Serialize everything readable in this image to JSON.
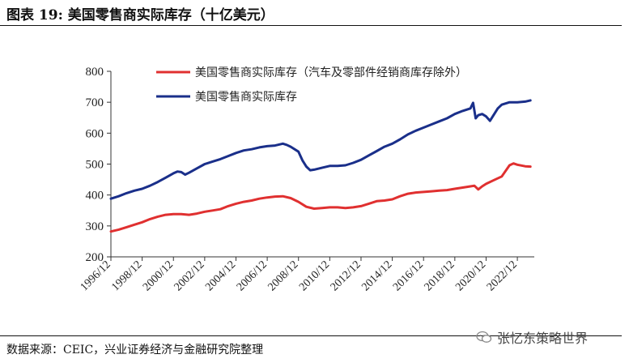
{
  "header": {
    "figure_title": "图表 19:  美国零售商实际库存（十亿美元）"
  },
  "footer": {
    "source": "数据来源：CEIC，兴业证券经济与金融研究院整理",
    "watermark": "张忆东策略世界"
  },
  "colors": {
    "series_red": "#e03030",
    "series_navy": "#1a2f8a",
    "axis": "#333333"
  },
  "chart_data": {
    "type": "line",
    "title": "",
    "xlabel": "",
    "ylabel": "",
    "ylim": [
      200,
      800
    ],
    "yticks": [
      200,
      300,
      400,
      500,
      600,
      700,
      800
    ],
    "xlim": [
      1996.917,
      2024.0
    ],
    "xticks": [
      "1996/12",
      "1998/12",
      "2000/12",
      "2002/12",
      "2004/12",
      "2006/12",
      "2008/12",
      "2010/12",
      "2012/12",
      "2014/12",
      "2016/12",
      "2018/12",
      "2020/12",
      "2022/12"
    ],
    "legend_position": "top-right",
    "grid": false,
    "series": [
      {
        "name": "美国零售商实际库存（汽车及零部件经销商库存除外）",
        "color": "#e03030",
        "points": [
          [
            "1996-12",
            282
          ],
          [
            "1997-06",
            288
          ],
          [
            "1997-12",
            296
          ],
          [
            "1998-06",
            304
          ],
          [
            "1998-12",
            312
          ],
          [
            "1999-06",
            322
          ],
          [
            "1999-12",
            330
          ],
          [
            "2000-06",
            336
          ],
          [
            "2000-12",
            338
          ],
          [
            "2001-06",
            338
          ],
          [
            "2001-12",
            336
          ],
          [
            "2002-06",
            340
          ],
          [
            "2002-12",
            346
          ],
          [
            "2003-06",
            350
          ],
          [
            "2003-12",
            354
          ],
          [
            "2004-06",
            364
          ],
          [
            "2004-12",
            372
          ],
          [
            "2005-06",
            378
          ],
          [
            "2005-12",
            382
          ],
          [
            "2006-06",
            388
          ],
          [
            "2006-12",
            392
          ],
          [
            "2007-06",
            395
          ],
          [
            "2007-12",
            396
          ],
          [
            "2008-06",
            390
          ],
          [
            "2008-12",
            378
          ],
          [
            "2009-06",
            362
          ],
          [
            "2009-12",
            356
          ],
          [
            "2010-06",
            358
          ],
          [
            "2010-12",
            360
          ],
          [
            "2011-06",
            360
          ],
          [
            "2011-12",
            358
          ],
          [
            "2012-06",
            360
          ],
          [
            "2012-12",
            364
          ],
          [
            "2013-06",
            372
          ],
          [
            "2013-12",
            380
          ],
          [
            "2014-06",
            382
          ],
          [
            "2014-12",
            386
          ],
          [
            "2015-06",
            396
          ],
          [
            "2015-12",
            404
          ],
          [
            "2016-06",
            408
          ],
          [
            "2016-12",
            410
          ],
          [
            "2017-06",
            412
          ],
          [
            "2017-12",
            414
          ],
          [
            "2018-06",
            416
          ],
          [
            "2018-12",
            420
          ],
          [
            "2019-06",
            424
          ],
          [
            "2019-12",
            428
          ],
          [
            "2020-03",
            430
          ],
          [
            "2020-06",
            418
          ],
          [
            "2020-09",
            428
          ],
          [
            "2020-12",
            436
          ],
          [
            "2021-06",
            448
          ],
          [
            "2021-12",
            460
          ],
          [
            "2022-06",
            496
          ],
          [
            "2022-09",
            502
          ],
          [
            "2022-12",
            498
          ],
          [
            "2023-06",
            493
          ],
          [
            "2023-10",
            492
          ]
        ]
      },
      {
        "name": "美国零售商实际库存",
        "color": "#1a2f8a",
        "points": [
          [
            "1996-12",
            388
          ],
          [
            "1997-06",
            396
          ],
          [
            "1997-12",
            406
          ],
          [
            "1998-06",
            414
          ],
          [
            "1998-12",
            420
          ],
          [
            "1999-06",
            430
          ],
          [
            "1999-12",
            442
          ],
          [
            "2000-06",
            456
          ],
          [
            "2000-12",
            470
          ],
          [
            "2001-03",
            476
          ],
          [
            "2001-06",
            474
          ],
          [
            "2001-09",
            466
          ],
          [
            "2001-12",
            472
          ],
          [
            "2002-06",
            486
          ],
          [
            "2002-12",
            500
          ],
          [
            "2003-06",
            508
          ],
          [
            "2003-12",
            516
          ],
          [
            "2004-06",
            526
          ],
          [
            "2004-12",
            536
          ],
          [
            "2005-06",
            544
          ],
          [
            "2005-12",
            548
          ],
          [
            "2006-06",
            554
          ],
          [
            "2006-12",
            558
          ],
          [
            "2007-06",
            560
          ],
          [
            "2007-12",
            566
          ],
          [
            "2008-03",
            562
          ],
          [
            "2008-06",
            556
          ],
          [
            "2008-12",
            540
          ],
          [
            "2009-03",
            512
          ],
          [
            "2009-06",
            492
          ],
          [
            "2009-09",
            480
          ],
          [
            "2009-12",
            482
          ],
          [
            "2010-06",
            488
          ],
          [
            "2010-12",
            494
          ],
          [
            "2011-06",
            494
          ],
          [
            "2011-12",
            496
          ],
          [
            "2012-06",
            504
          ],
          [
            "2012-12",
            514
          ],
          [
            "2013-06",
            528
          ],
          [
            "2013-12",
            542
          ],
          [
            "2014-06",
            556
          ],
          [
            "2014-12",
            566
          ],
          [
            "2015-06",
            580
          ],
          [
            "2015-12",
            596
          ],
          [
            "2016-06",
            608
          ],
          [
            "2016-12",
            618
          ],
          [
            "2017-06",
            628
          ],
          [
            "2017-12",
            638
          ],
          [
            "2018-06",
            648
          ],
          [
            "2018-12",
            662
          ],
          [
            "2019-06",
            672
          ],
          [
            "2019-12",
            680
          ],
          [
            "2020-02",
            698
          ],
          [
            "2020-04",
            648
          ],
          [
            "2020-06",
            658
          ],
          [
            "2020-09",
            662
          ],
          [
            "2020-12",
            654
          ],
          [
            "2021-03",
            640
          ],
          [
            "2021-06",
            660
          ],
          [
            "2021-09",
            680
          ],
          [
            "2021-12",
            692
          ],
          [
            "2022-06",
            700
          ],
          [
            "2022-12",
            700
          ],
          [
            "2023-06",
            702
          ],
          [
            "2023-10",
            706
          ]
        ]
      }
    ]
  }
}
